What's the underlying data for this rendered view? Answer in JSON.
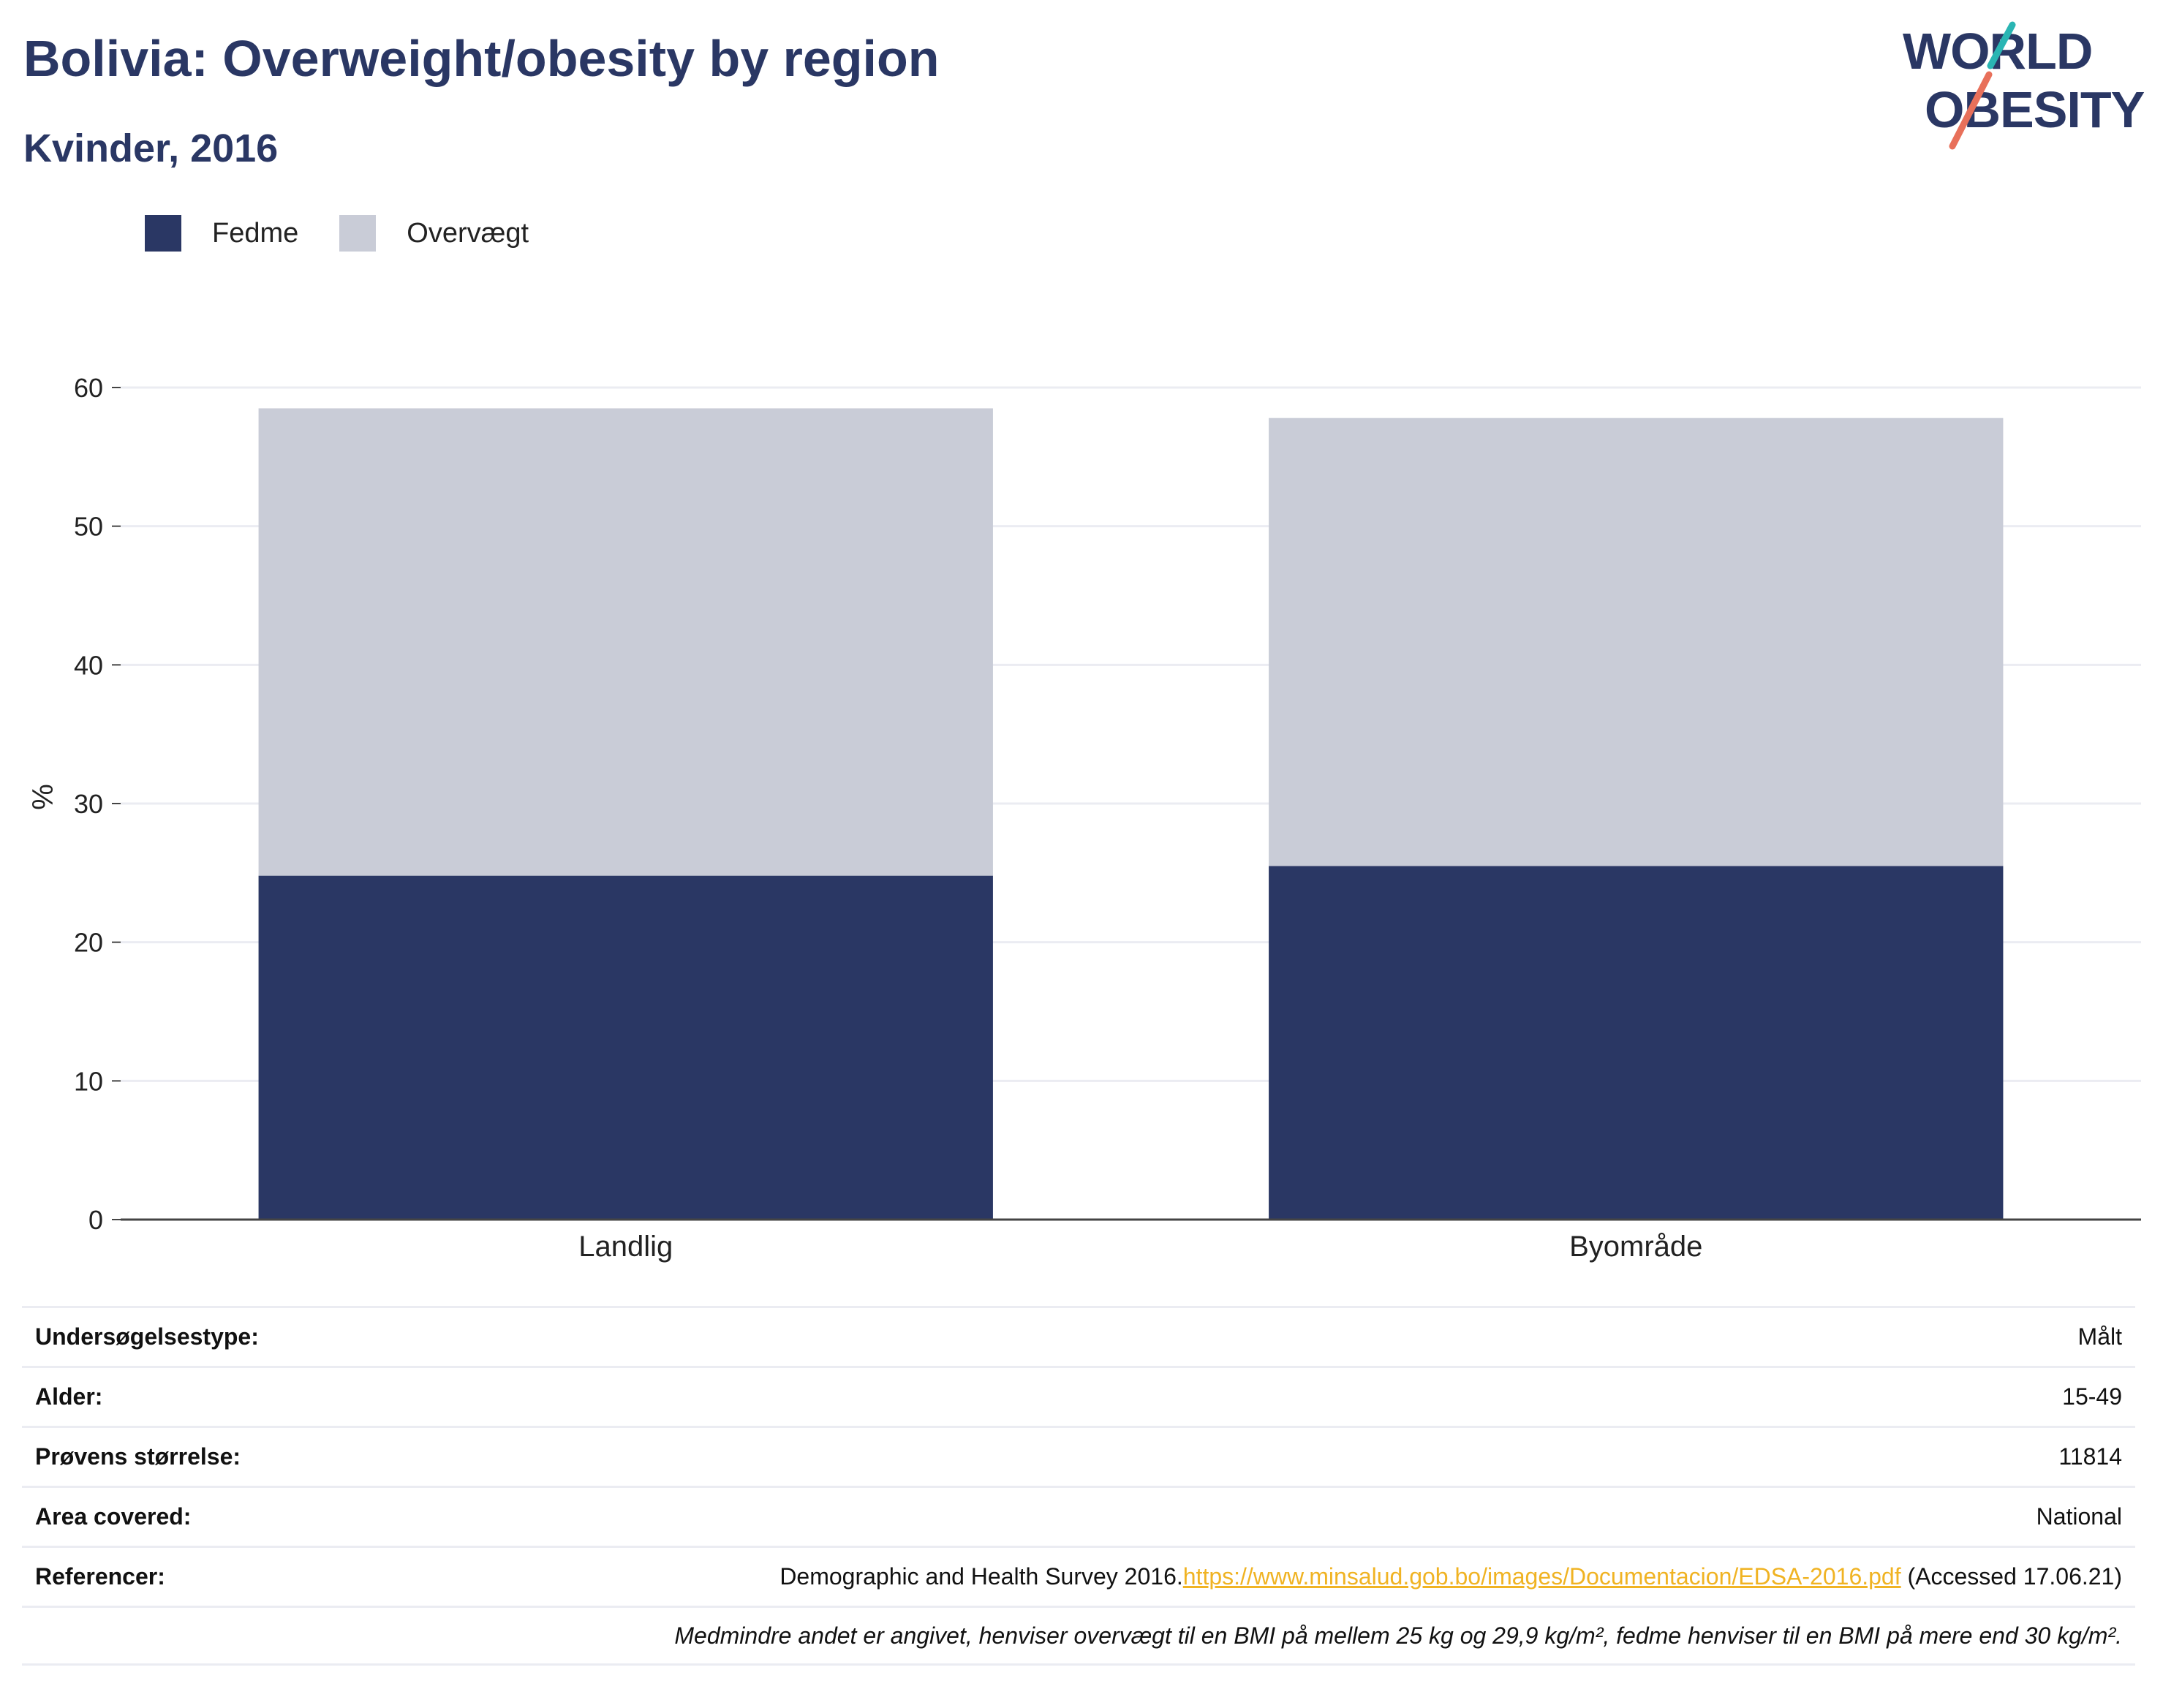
{
  "header": {
    "title": "Bolivia: Overweight/obesity by region",
    "subtitle": "Kvinder, 2016"
  },
  "logo": {
    "line1": "WORLD",
    "line2": "OBESITY",
    "colors": {
      "text": "#2a3764",
      "slash_top": "#2ab5b3",
      "slash_bottom": "#e8705a"
    }
  },
  "colors": {
    "fedme": "#2a3764",
    "overvaegt": "#c9ccd7",
    "grid": "#ebecf2",
    "axis": "#444444",
    "title": "#2a3764",
    "link": "#f0b323"
  },
  "legend": {
    "items": [
      {
        "label": "Fedme",
        "color": "#2a3764"
      },
      {
        "label": "Overvægt",
        "color": "#c9ccd7"
      }
    ]
  },
  "chart_data": {
    "type": "bar",
    "stacked": true,
    "categories": [
      "Landlig",
      "Byområde"
    ],
    "series": [
      {
        "name": "Fedme",
        "values": [
          24.8,
          25.5
        ],
        "color": "#2a3764"
      },
      {
        "name": "Overvægt",
        "values": [
          33.7,
          32.3
        ],
        "color": "#c9ccd7"
      }
    ],
    "ylabel": "%",
    "ylim": [
      0,
      60
    ],
    "yticks": [
      0,
      10,
      20,
      30,
      40,
      50,
      60
    ],
    "grid": true,
    "legend_position": "top-left"
  },
  "info": {
    "rows": [
      {
        "label": "Undersøgelsestype:",
        "value": "Målt"
      },
      {
        "label": "Alder:",
        "value": "15-49"
      },
      {
        "label": "Prøvens størrelse:",
        "value": "11814"
      },
      {
        "label": "Area covered:",
        "value": "National"
      }
    ],
    "reference": {
      "label": "Referencer:",
      "prefix": "Demographic and Health Survey 2016.",
      "link": "https://www.minsalud.gob.bo/images/Documentacion/EDSA-2016.pdf",
      "suffix": " (Accessed 17.06.21)"
    },
    "note": "Medmindre andet er angivet, henviser overvægt til en BMI på mellem 25 kg og 29,9 kg/m², fedme henviser til en BMI på mere end 30 kg/m²."
  }
}
